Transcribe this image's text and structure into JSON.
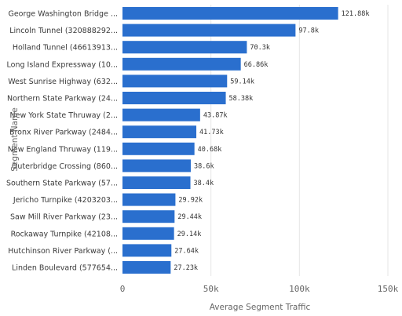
{
  "chart_data": {
    "type": "bar",
    "orientation": "horizontal",
    "xlabel": "Average Segment Traffic",
    "ylabel": "Segment Name",
    "xlim": [
      0,
      150000
    ],
    "xticks": [
      0,
      50000,
      100000,
      150000
    ],
    "xtick_labels": [
      "0",
      "50k",
      "100k",
      "150k"
    ],
    "grid": true,
    "bar_color": "#2a6fce",
    "categories": [
      "George Washington Bridge ...",
      "Lincoln Tunnel (320888292...",
      "Holland Tunnel (46613913...",
      "Long Island Expressway (10...",
      "West Sunrise Highway (632...",
      "Northern State Parkway (24...",
      "New York State Thruway (2...",
      "Bronx River Parkway (2484...",
      "New England Thruway (119...",
      "Outerbridge Crossing (860...",
      "Southern State Parkway (57...",
      "Jericho Turnpike (4203203...",
      "Saw Mill River Parkway (23...",
      "Rockaway Turnpike (42108...",
      "Hutchinson River Parkway (...",
      "Linden Boulevard (577654..."
    ],
    "values": [
      121880,
      97800,
      70300,
      66860,
      59140,
      58380,
      43870,
      41730,
      40680,
      38600,
      38400,
      29920,
      29440,
      29140,
      27640,
      27230
    ],
    "value_labels": [
      "121.88k",
      "97.8k",
      "70.3k",
      "66.86k",
      "59.14k",
      "58.38k",
      "43.87k",
      "41.73k",
      "40.68k",
      "38.6k",
      "38.4k",
      "29.92k",
      "29.44k",
      "29.14k",
      "27.64k",
      "27.23k"
    ]
  }
}
